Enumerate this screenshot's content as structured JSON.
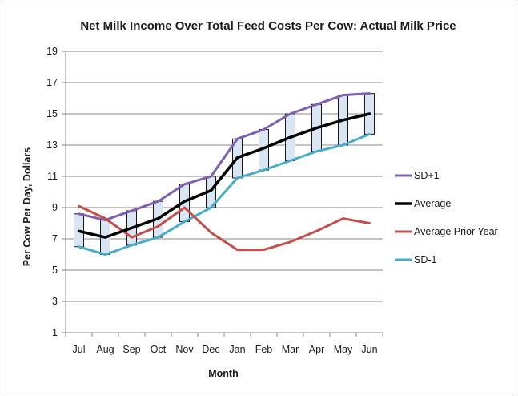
{
  "chart_data": {
    "type": "line",
    "title": "Net Milk Income Over Total Feed Costs Per Cow: Actual Milk Price",
    "xlabel": "Month",
    "ylabel": "Per Cow Per Day, Dollars",
    "categories": [
      "Jul",
      "Aug",
      "Sep",
      "Oct",
      "Nov",
      "Dec",
      "Jan",
      "Feb",
      "Mar",
      "Apr",
      "May",
      "Jun"
    ],
    "ylim": [
      1,
      19
    ],
    "yticks": [
      1,
      3,
      5,
      7,
      9,
      11,
      13,
      15,
      17,
      19
    ],
    "grid": true,
    "legend_position": "right",
    "series": [
      {
        "name": "SD+1",
        "color": "#7f5fb0",
        "values": [
          8.6,
          8.2,
          8.8,
          9.4,
          10.5,
          11.0,
          13.4,
          14.0,
          15.0,
          15.6,
          16.2,
          16.3
        ]
      },
      {
        "name": "Average",
        "color": "#000000",
        "values": [
          7.5,
          7.1,
          7.7,
          8.3,
          9.4,
          10.1,
          12.2,
          12.8,
          13.5,
          14.1,
          14.6,
          15.0
        ]
      },
      {
        "name": "Average Prior Year",
        "color": "#c0504d",
        "values": [
          9.1,
          8.3,
          7.1,
          7.8,
          9.0,
          7.4,
          6.3,
          6.3,
          6.8,
          7.5,
          8.3,
          8.0
        ]
      },
      {
        "name": "SD-1",
        "color": "#4bacc6",
        "values": [
          6.5,
          6.0,
          6.6,
          7.1,
          8.1,
          9.0,
          10.9,
          11.4,
          12.0,
          12.6,
          13.0,
          13.7
        ]
      }
    ]
  }
}
